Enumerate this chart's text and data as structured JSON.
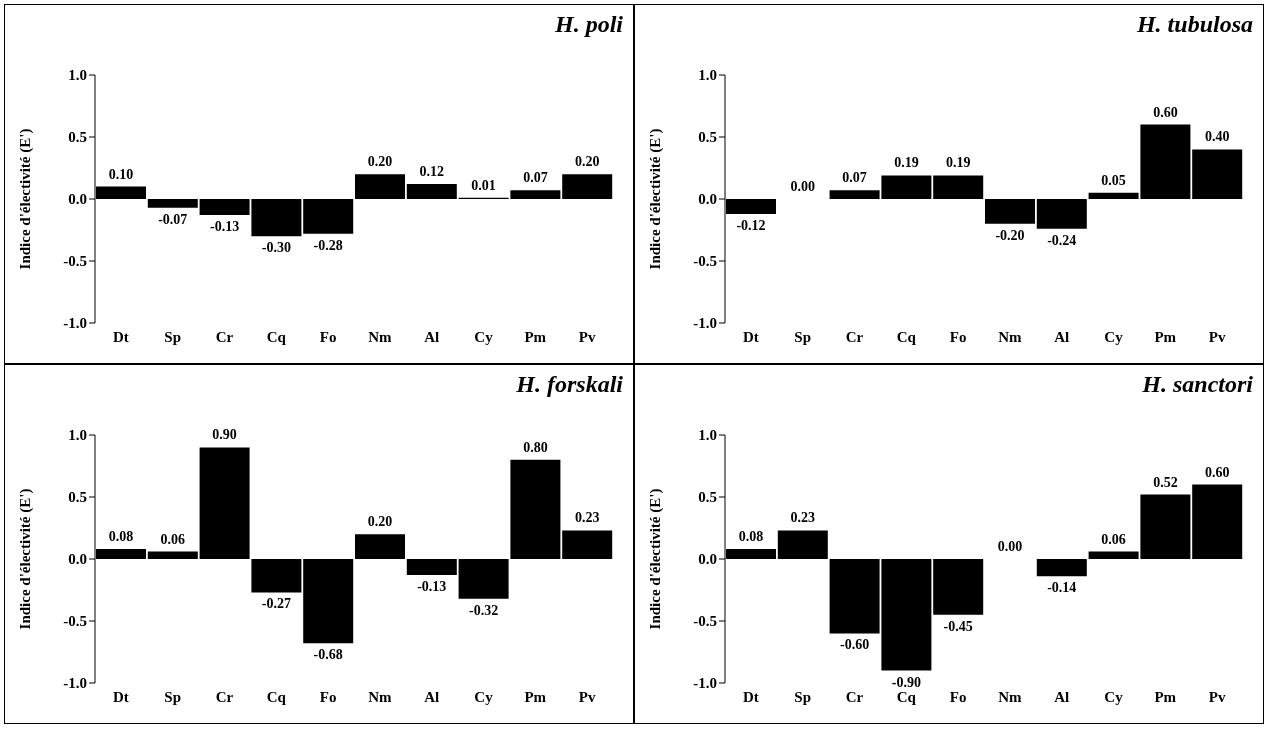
{
  "chart_data": [
    {
      "type": "bar",
      "title": "H. poli",
      "ylabel": "Indice d'électivité (E')",
      "categories": [
        "Dt",
        "Sp",
        "Cr",
        "Cq",
        "Fo",
        "Nm",
        "Al",
        "Cy",
        "Pm",
        "Pv"
      ],
      "values": [
        0.1,
        -0.07,
        -0.13,
        -0.3,
        -0.28,
        0.2,
        0.12,
        0.01,
        0.07,
        0.2
      ],
      "value_labels": [
        "0.10",
        "-0.07",
        "-0.13",
        "-0.30",
        "-0.28",
        "0.20",
        "0.12",
        "0.01",
        "0.07",
        "0.20"
      ],
      "color": "#000000",
      "ylim": [
        -1,
        1
      ],
      "yticks": [
        {
          "value": -1,
          "label": "-1.0"
        },
        {
          "value": -0.5,
          "label": "-0.5"
        },
        {
          "value": 0,
          "label": "0.0"
        },
        {
          "value": 0.5,
          "label": "0.5"
        },
        {
          "value": 1,
          "label": "1.0"
        }
      ],
      "grid": false,
      "legend": false
    },
    {
      "type": "bar",
      "title": "H. tubulosa",
      "ylabel": "Indice d'électivité (E')",
      "categories": [
        "Dt",
        "Sp",
        "Cr",
        "Cq",
        "Fo",
        "Nm",
        "Al",
        "Cy",
        "Pm",
        "Pv"
      ],
      "values": [
        -0.12,
        0.0,
        0.07,
        0.19,
        0.19,
        -0.2,
        -0.24,
        0.05,
        0.6,
        0.4
      ],
      "value_labels": [
        "-0.12",
        "0.00",
        "0.07",
        "0.19",
        "0.19",
        "-0.20",
        "-0.24",
        "0.05",
        "0.60",
        "0.40"
      ],
      "color": "#000000",
      "ylim": [
        -1,
        1
      ],
      "yticks": [
        {
          "value": -1,
          "label": "-1.0"
        },
        {
          "value": -0.5,
          "label": "-0.5"
        },
        {
          "value": 0,
          "label": "0.0"
        },
        {
          "value": 0.5,
          "label": "0.5"
        },
        {
          "value": 1,
          "label": "1.0"
        }
      ],
      "grid": false,
      "legend": false
    },
    {
      "type": "bar",
      "title": "H. forskali",
      "ylabel": "Indice d'électivité (E')",
      "categories": [
        "Dt",
        "Sp",
        "Cr",
        "Cq",
        "Fo",
        "Nm",
        "Al",
        "Cy",
        "Pm",
        "Pv"
      ],
      "values": [
        0.08,
        0.06,
        0.9,
        -0.27,
        -0.68,
        0.2,
        -0.13,
        -0.32,
        0.8,
        0.23
      ],
      "value_labels": [
        "0.08",
        "0.06",
        "0.90",
        "-0.27",
        "-0.68",
        "0.20",
        "-0.13",
        "-0.32",
        "0.80",
        "0.23"
      ],
      "color": "#000000",
      "ylim": [
        -1,
        1
      ],
      "yticks": [
        {
          "value": -1,
          "label": "-1.0"
        },
        {
          "value": -0.5,
          "label": "-0.5"
        },
        {
          "value": 0,
          "label": "0.0"
        },
        {
          "value": 0.5,
          "label": "0.5"
        },
        {
          "value": 1,
          "label": "1.0"
        }
      ],
      "grid": false,
      "legend": false
    },
    {
      "type": "bar",
      "title": "H. sanctori",
      "ylabel": "Indice d'électivité (E')",
      "categories": [
        "Dt",
        "Sp",
        "Cr",
        "Cq",
        "Fo",
        "Nm",
        "Al",
        "Cy",
        "Pm",
        "Pv"
      ],
      "values": [
        0.08,
        0.23,
        -0.6,
        -0.9,
        -0.45,
        0.0,
        -0.14,
        0.06,
        0.52,
        0.6
      ],
      "value_labels": [
        "0.08",
        "0.23",
        "-0.60",
        "-0.90",
        "-0.45",
        "0.00",
        "-0.14",
        "0.06",
        "0.52",
        "0.60"
      ],
      "color": "#000000",
      "ylim": [
        -1,
        1
      ],
      "yticks": [
        {
          "value": -1,
          "label": "-1.0"
        },
        {
          "value": -0.5,
          "label": "-0.5"
        },
        {
          "value": 0,
          "label": "0.0"
        },
        {
          "value": 0.5,
          "label": "0.5"
        },
        {
          "value": 1,
          "label": "1.0"
        }
      ],
      "grid": false,
      "legend": false
    }
  ]
}
